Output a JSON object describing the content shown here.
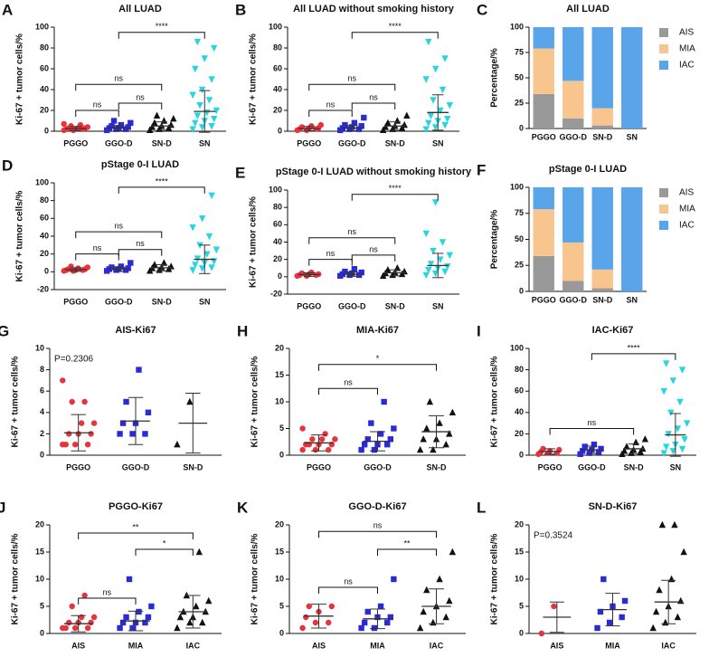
{
  "chart_data": [
    {
      "type": "dot",
      "label": "A",
      "title": "All LUAD",
      "ylabel": "Ki-67 + tumor cells/%",
      "ylim": [
        0,
        100
      ],
      "yticks": [
        0,
        20,
        40,
        60,
        80,
        100
      ],
      "groups": [
        {
          "name": "PGGO",
          "color": "#e8323c",
          "marker": "circle",
          "values": [
            1,
            1,
            2,
            2,
            2,
            3,
            3,
            3,
            4,
            5,
            6,
            7
          ],
          "mean": 2.5,
          "sd": 2
        },
        {
          "name": "GGO-D",
          "color": "#2a2ad8",
          "marker": "square",
          "values": [
            1,
            2,
            2,
            3,
            3,
            4,
            5,
            6,
            8,
            10
          ],
          "mean": 3,
          "sd": 2.5
        },
        {
          "name": "SN-D",
          "color": "#111111",
          "marker": "triangle",
          "values": [
            1,
            2,
            3,
            4,
            5,
            6,
            8,
            10,
            12,
            15
          ],
          "mean": 5,
          "sd": 4
        },
        {
          "name": "SN",
          "color": "#25d5e0",
          "marker": "tridown",
          "values": [
            2,
            4,
            5,
            8,
            10,
            12,
            15,
            18,
            20,
            25,
            30,
            35,
            40,
            50,
            60,
            70,
            80,
            86
          ],
          "mean": 19,
          "sd": 20
        }
      ],
      "brackets": [
        {
          "from": 0,
          "to": 1,
          "y": 20,
          "label": "ns"
        },
        {
          "from": 1,
          "to": 2,
          "y": 27,
          "label": "ns"
        },
        {
          "from": 0,
          "to": 2,
          "y": 45,
          "label": "ns"
        },
        {
          "from": 1,
          "to": 3,
          "y": 95,
          "label": "****"
        }
      ]
    },
    {
      "type": "dot",
      "label": "B",
      "title": "All LUAD without smoking history",
      "ylabel": "Ki-67 + tumor cells/%",
      "ylim": [
        0,
        100
      ],
      "yticks": [
        0,
        20,
        40,
        60,
        80,
        100
      ],
      "groups": [
        {
          "name": "PGGO",
          "color": "#e8323c",
          "marker": "circle",
          "values": [
            1,
            1,
            2,
            2,
            3,
            3,
            4,
            5,
            6
          ],
          "mean": 2.5,
          "sd": 2
        },
        {
          "name": "GGO-D",
          "color": "#2a2ad8",
          "marker": "square",
          "values": [
            1,
            2,
            2,
            3,
            4,
            5,
            6,
            8,
            13
          ],
          "mean": 3,
          "sd": 2.5
        },
        {
          "name": "SN-D",
          "color": "#111111",
          "marker": "triangle",
          "values": [
            1,
            2,
            3,
            4,
            5,
            6,
            8,
            10,
            15
          ],
          "mean": 5,
          "sd": 4
        },
        {
          "name": "SN",
          "color": "#25d5e0",
          "marker": "tridown",
          "values": [
            2,
            4,
            6,
            8,
            10,
            12,
            15,
            20,
            25,
            30,
            40,
            50,
            60,
            70,
            86
          ],
          "mean": 18,
          "sd": 17
        }
      ],
      "brackets": [
        {
          "from": 0,
          "to": 1,
          "y": 20,
          "label": "ns"
        },
        {
          "from": 1,
          "to": 2,
          "y": 27,
          "label": "ns"
        },
        {
          "from": 0,
          "to": 2,
          "y": 45,
          "label": "ns"
        },
        {
          "from": 1,
          "to": 3,
          "y": 95,
          "label": "****"
        }
      ]
    },
    {
      "type": "stacked",
      "label": "C",
      "title": "All LUAD",
      "ylabel": "Percentage/%",
      "ylim": [
        0,
        100
      ],
      "yticks": [
        0,
        25,
        50,
        75,
        100
      ],
      "categories": [
        "PGGO",
        "GGO-D",
        "SN-D",
        "SN"
      ],
      "series": [
        {
          "name": "AIS",
          "color": "#999999",
          "values": [
            34,
            10,
            3,
            0
          ]
        },
        {
          "name": "MIA",
          "color": "#f9c58f",
          "values": [
            45,
            37,
            17,
            0
          ]
        },
        {
          "name": "IAC",
          "color": "#5aa5ea",
          "values": [
            21,
            53,
            80,
            100
          ]
        }
      ]
    },
    {
      "type": "dot",
      "label": "D",
      "title": "pStage 0-I LUAD",
      "ylabel": "Ki-67 + tumor cells/%",
      "ylim": [
        -20,
        100
      ],
      "yticks": [
        -20,
        0,
        20,
        40,
        60,
        80,
        100
      ],
      "groups": [
        {
          "name": "PGGO",
          "color": "#e8323c",
          "marker": "circle",
          "values": [
            1,
            1,
            2,
            2,
            2,
            3,
            3,
            4,
            5,
            6
          ],
          "mean": 2.5,
          "sd": 2
        },
        {
          "name": "GGO-D",
          "color": "#2a2ad8",
          "marker": "square",
          "values": [
            1,
            2,
            2,
            3,
            3,
            4,
            5,
            6,
            10
          ],
          "mean": 3,
          "sd": 2.5
        },
        {
          "name": "SN-D",
          "color": "#111111",
          "marker": "triangle",
          "values": [
            1,
            2,
            3,
            4,
            5,
            6,
            8,
            10
          ],
          "mean": 4.5,
          "sd": 3.5
        },
        {
          "name": "SN",
          "color": "#25d5e0",
          "marker": "tridown",
          "values": [
            2,
            4,
            5,
            8,
            10,
            12,
            15,
            20,
            25,
            30,
            40,
            50,
            60,
            86
          ],
          "mean": 14,
          "sd": 16
        }
      ],
      "brackets": [
        {
          "from": 0,
          "to": 1,
          "y": 20,
          "label": "ns"
        },
        {
          "from": 1,
          "to": 2,
          "y": 25,
          "label": "ns"
        },
        {
          "from": 0,
          "to": 2,
          "y": 45,
          "label": "ns"
        },
        {
          "from": 1,
          "to": 3,
          "y": 95,
          "label": "****"
        }
      ]
    },
    {
      "type": "dot",
      "label": "E",
      "title": "pStage 0-I LUAD without smoking history",
      "ylabel": "Ki-67 + tumor cells/%",
      "ylim": [
        -20,
        100
      ],
      "yticks": [
        -20,
        0,
        20,
        40,
        60,
        80,
        100
      ],
      "groups": [
        {
          "name": "PGGO",
          "color": "#e8323c",
          "marker": "circle",
          "values": [
            1,
            1,
            2,
            2,
            3,
            3,
            4,
            5
          ],
          "mean": 2.5,
          "sd": 2
        },
        {
          "name": "GGO-D",
          "color": "#2a2ad8",
          "marker": "square",
          "values": [
            1,
            2,
            2,
            3,
            4,
            5,
            6,
            9
          ],
          "mean": 3,
          "sd": 2.5
        },
        {
          "name": "SN-D",
          "color": "#111111",
          "marker": "triangle",
          "values": [
            1,
            2,
            3,
            4,
            5,
            6,
            8,
            10
          ],
          "mean": 4.5,
          "sd": 3.5
        },
        {
          "name": "SN",
          "color": "#25d5e0",
          "marker": "tridown",
          "values": [
            2,
            4,
            6,
            8,
            10,
            12,
            15,
            20,
            25,
            30,
            40,
            50,
            86
          ],
          "mean": 13,
          "sd": 14
        }
      ],
      "brackets": [
        {
          "from": 0,
          "to": 1,
          "y": 20,
          "label": "ns"
        },
        {
          "from": 1,
          "to": 2,
          "y": 25,
          "label": "ns"
        },
        {
          "from": 0,
          "to": 2,
          "y": 45,
          "label": "ns"
        },
        {
          "from": 1,
          "to": 3,
          "y": 95,
          "label": "****"
        }
      ]
    },
    {
      "type": "stacked",
      "label": "F",
      "title": "pStage 0-I LUAD",
      "ylabel": "Percentage/%",
      "ylim": [
        0,
        100
      ],
      "yticks": [
        0,
        25,
        50,
        75,
        100
      ],
      "categories": [
        "PGGO",
        "GGO-D",
        "SN-D",
        "SN"
      ],
      "series": [
        {
          "name": "AIS",
          "color": "#999999",
          "values": [
            34,
            10,
            3,
            0
          ]
        },
        {
          "name": "MIA",
          "color": "#f9c58f",
          "values": [
            45,
            37,
            18,
            0
          ]
        },
        {
          "name": "IAC",
          "color": "#5aa5ea",
          "values": [
            21,
            53,
            79,
            100
          ]
        }
      ]
    },
    {
      "type": "dot",
      "label": "G",
      "title": "AIS-Ki67",
      "ylabel": "Ki-67 + tumor cells/%",
      "ylim": [
        0,
        10
      ],
      "yticks": [
        0,
        2,
        4,
        6,
        8,
        10
      ],
      "annotation": "P=0.2306",
      "groups": [
        {
          "name": "PGGO",
          "color": "#e8323c",
          "marker": "circle",
          "values": [
            1,
            1,
            1,
            1,
            2,
            2,
            2,
            3,
            3,
            5,
            5,
            7
          ],
          "mean": 2.1,
          "sd": 1.7
        },
        {
          "name": "GGO-D",
          "color": "#2a2ad8",
          "marker": "square",
          "values": [
            2,
            2,
            2,
            3,
            3,
            4,
            5,
            8
          ],
          "mean": 3.2,
          "sd": 2.2
        },
        {
          "name": "SN-D",
          "color": "#111111",
          "marker": "triangle",
          "values": [
            1,
            5
          ],
          "mean": 3,
          "sd": 2.8
        }
      ],
      "brackets": []
    },
    {
      "type": "dot",
      "label": "H",
      "title": "MIA-Ki67",
      "ylabel": "Ki-67 + tumor cells/%",
      "ylim": [
        0,
        20
      ],
      "yticks": [
        0,
        5,
        10,
        15,
        20
      ],
      "groups": [
        {
          "name": "PGGO",
          "color": "#e8323c",
          "marker": "circle",
          "values": [
            1,
            1,
            1,
            2,
            2,
            2,
            2,
            3,
            3,
            3,
            4,
            5
          ],
          "mean": 2.3,
          "sd": 1.5
        },
        {
          "name": "GGO-D",
          "color": "#2a2ad8",
          "marker": "square",
          "values": [
            1,
            1,
            2,
            2,
            2,
            3,
            3,
            4,
            5,
            6,
            10
          ],
          "mean": 2.6,
          "sd": 1.8
        },
        {
          "name": "SN-D",
          "color": "#111111",
          "marker": "triangle",
          "values": [
            1,
            1,
            2,
            3,
            3,
            4,
            5,
            6,
            8,
            10
          ],
          "mean": 4.4,
          "sd": 3
        }
      ],
      "brackets": [
        {
          "from": 0,
          "to": 1,
          "y": 12.5,
          "label": "ns"
        },
        {
          "from": 0,
          "to": 2,
          "y": 17,
          "label": "*"
        }
      ]
    },
    {
      "type": "dot",
      "label": "I",
      "title": "IAC-Ki67",
      "ylabel": "Ki-67 + tumor cells/%",
      "ylim": [
        0,
        100
      ],
      "yticks": [
        0,
        20,
        40,
        60,
        80,
        100
      ],
      "groups": [
        {
          "name": "PGGO",
          "color": "#e8323c",
          "marker": "circle",
          "values": [
            1,
            2,
            2,
            3,
            4,
            5,
            6
          ],
          "mean": 3.5,
          "sd": 2.5
        },
        {
          "name": "GGO-D",
          "color": "#2a2ad8",
          "marker": "square",
          "values": [
            1,
            2,
            3,
            4,
            5,
            6,
            8,
            10
          ],
          "mean": 5,
          "sd": 3.5
        },
        {
          "name": "SN-D",
          "color": "#111111",
          "marker": "triangle",
          "values": [
            1,
            2,
            3,
            4,
            5,
            6,
            8,
            12,
            15
          ],
          "mean": 6,
          "sd": 4.5
        },
        {
          "name": "SN",
          "color": "#25d5e0",
          "marker": "tridown",
          "values": [
            2,
            4,
            6,
            8,
            10,
            15,
            20,
            25,
            30,
            40,
            50,
            60,
            70,
            80,
            86
          ],
          "mean": 19,
          "sd": 20
        }
      ],
      "brackets": [
        {
          "from": 0,
          "to": 2,
          "y": 25,
          "label": "ns"
        },
        {
          "from": 1,
          "to": 3,
          "y": 95,
          "label": "****"
        }
      ]
    },
    {
      "type": "dot",
      "label": "J",
      "title": "PGGO-Ki67",
      "ylabel": "Ki-67 + tumor cells/%",
      "ylim": [
        0,
        20
      ],
      "yticks": [
        0,
        5,
        10,
        15,
        20
      ],
      "groups": [
        {
          "name": "AIS",
          "color": "#e8323c",
          "marker": "circle",
          "values": [
            1,
            1,
            1,
            1,
            2,
            2,
            2,
            3,
            3,
            5,
            7
          ],
          "mean": 1.8,
          "sd": 1.5
        },
        {
          "name": "MIA",
          "color": "#2a2ad8",
          "marker": "square",
          "values": [
            1,
            1,
            2,
            2,
            2,
            3,
            3,
            4,
            5,
            10
          ],
          "mean": 2.3,
          "sd": 1.8
        },
        {
          "name": "IAC",
          "color": "#111111",
          "marker": "triangle",
          "values": [
            1,
            2,
            2,
            3,
            3,
            4,
            4,
            5,
            6,
            7,
            15
          ],
          "mean": 4,
          "sd": 3
        }
      ],
      "brackets": [
        {
          "from": 0,
          "to": 1,
          "y": 6.5,
          "label": "ns"
        },
        {
          "from": 1,
          "to": 2,
          "y": 15.5,
          "label": "*"
        },
        {
          "from": 0,
          "to": 2,
          "y": 18.5,
          "label": "**"
        }
      ]
    },
    {
      "type": "dot",
      "label": "K",
      "title": "GGO-D-Ki67",
      "ylabel": "Ki-67 + tumor cells/%",
      "ylim": [
        0,
        20
      ],
      "yticks": [
        0,
        5,
        10,
        15,
        20
      ],
      "groups": [
        {
          "name": "AIS",
          "color": "#e8323c",
          "marker": "circle",
          "values": [
            1,
            2,
            2,
            3,
            4,
            5,
            5
          ],
          "mean": 3.2,
          "sd": 2.2
        },
        {
          "name": "MIA",
          "color": "#2a2ad8",
          "marker": "square",
          "values": [
            1,
            1,
            2,
            2,
            3,
            3,
            4,
            5,
            10
          ],
          "mean": 2.7,
          "sd": 1.8
        },
        {
          "name": "IAC",
          "color": "#111111",
          "marker": "triangle",
          "values": [
            1,
            2,
            3,
            4,
            5,
            6,
            8,
            10,
            15
          ],
          "mean": 5,
          "sd": 3.2
        }
      ],
      "brackets": [
        {
          "from": 0,
          "to": 1,
          "y": 8.5,
          "label": "ns"
        },
        {
          "from": 1,
          "to": 2,
          "y": 15.5,
          "label": "**"
        },
        {
          "from": 0,
          "to": 2,
          "y": 18.8,
          "label": "ns"
        }
      ]
    },
    {
      "type": "dot",
      "label": "L",
      "title": "SN-D-Ki67",
      "ylabel": "Ki-67 + tumor cells/%",
      "ylim": [
        0,
        20
      ],
      "yticks": [
        0,
        5,
        10,
        15,
        20
      ],
      "annotation": "P=0.3524",
      "groups": [
        {
          "name": "AIS",
          "color": "#e8323c",
          "marker": "circle",
          "values": [
            0,
            5
          ],
          "mean": 3,
          "sd": 2.8
        },
        {
          "name": "MIA",
          "color": "#2a2ad8",
          "marker": "square",
          "values": [
            1,
            2,
            3,
            4,
            5,
            6,
            10
          ],
          "mean": 4.4,
          "sd": 3
        },
        {
          "name": "IAC",
          "color": "#111111",
          "marker": "triangle",
          "values": [
            1,
            2,
            3,
            4,
            5,
            6,
            8,
            10,
            15,
            20,
            20
          ],
          "mean": 5.8,
          "sd": 4
        }
      ],
      "brackets": []
    }
  ]
}
